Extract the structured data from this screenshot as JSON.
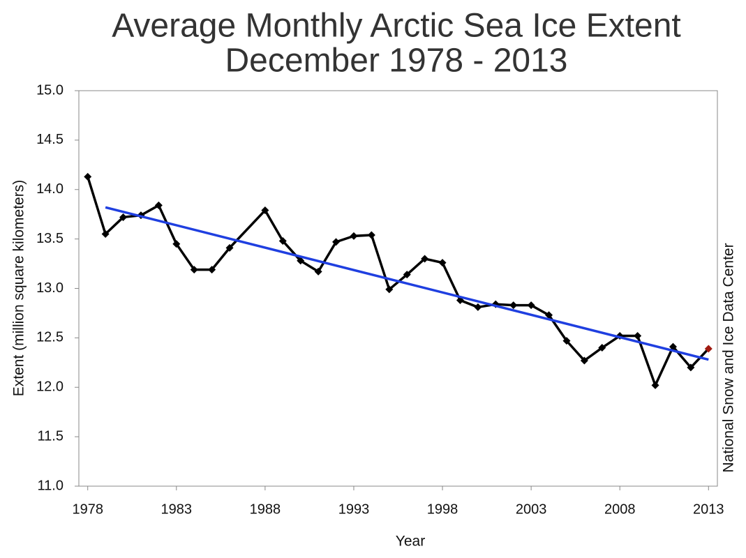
{
  "chart_data": {
    "type": "line",
    "title": [
      "Average Monthly Arctic Sea Ice Extent",
      "December 1978 - 2013"
    ],
    "x_label": "Year",
    "y_label": "Extent (million square kilometers)",
    "side_note": "National Snow and Ice Data Center",
    "xlim": [
      1977.5,
      2013.5
    ],
    "ylim": [
      11.0,
      15.0
    ],
    "xticks": [
      1978,
      1983,
      1988,
      1993,
      1998,
      2003,
      2008,
      2013
    ],
    "yticks": [
      {
        "value": 11.0,
        "label": "11.0"
      },
      11.5,
      {
        "value": 12.0,
        "label": "12.0"
      },
      12.5,
      {
        "value": 13.0,
        "label": "13.0"
      },
      13.5,
      {
        "value": 14.0,
        "label": "14.0"
      },
      14.5,
      {
        "value": 15.0,
        "label": "15.0"
      }
    ],
    "series": [
      {
        "color": "#000000",
        "marker": "diamond",
        "last_point_color": "#a01a10",
        "x": [
          1978,
          1979,
          1980,
          1981,
          1982,
          1983,
          1984,
          1985,
          1986,
          1988,
          1989,
          1990,
          1991,
          1992,
          1993,
          1994,
          1995,
          1996,
          1997,
          1998,
          1999,
          2000,
          2001,
          2002,
          2003,
          2004,
          2005,
          2006,
          2007,
          2008,
          2009,
          2010,
          2011,
          2012,
          2013
        ],
        "values": [
          14.13,
          13.55,
          13.72,
          13.74,
          13.84,
          13.45,
          13.19,
          13.19,
          13.41,
          13.79,
          13.48,
          13.28,
          13.17,
          13.47,
          13.53,
          13.54,
          12.99,
          13.14,
          13.3,
          13.26,
          12.88,
          12.81,
          12.84,
          12.83,
          12.83,
          12.73,
          12.47,
          12.27,
          12.4,
          12.52,
          12.52,
          12.02,
          12.41,
          12.2,
          12.39
        ]
      },
      {
        "color": "#1f3fe0",
        "marker": "none",
        "x": [
          1979,
          2013
        ],
        "values": [
          13.82,
          12.28
        ]
      }
    ]
  }
}
